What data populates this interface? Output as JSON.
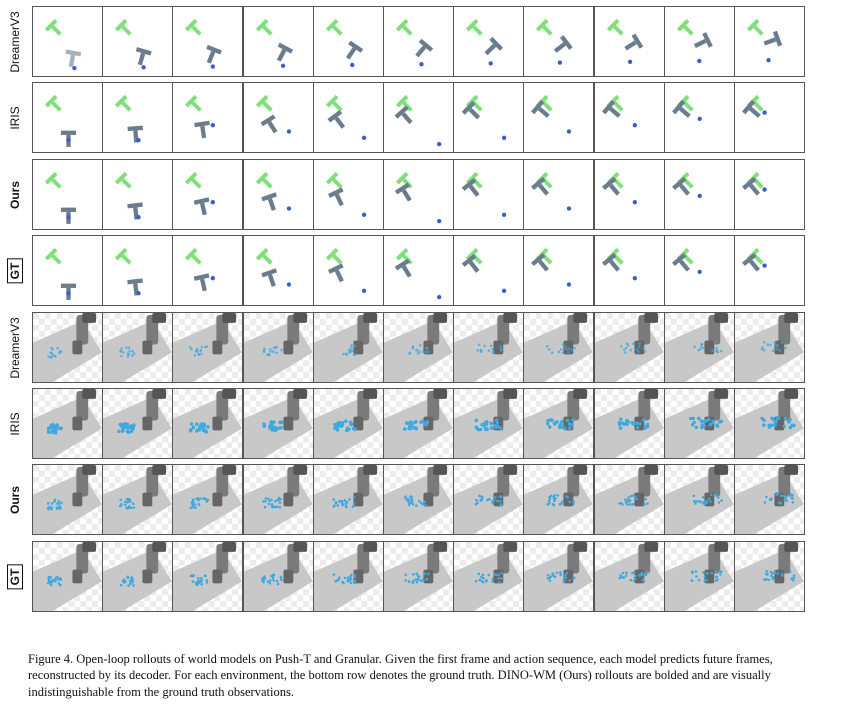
{
  "rows": [
    {
      "label": "DreamerV3",
      "style": "normal",
      "env": "pusht",
      "model": "dreamer"
    },
    {
      "label": "IRIS",
      "style": "normal",
      "env": "pusht",
      "model": "iris"
    },
    {
      "label": "Ours",
      "style": "bold",
      "env": "pusht",
      "model": "ours"
    },
    {
      "label": "GT",
      "style": "boxed",
      "env": "pusht",
      "model": "gt"
    },
    {
      "label": "DreamerV3",
      "style": "normal",
      "env": "granular",
      "model": "dreamer"
    },
    {
      "label": "IRIS",
      "style": "normal",
      "env": "granular",
      "model": "iris"
    },
    {
      "label": "Ours",
      "style": "bold",
      "env": "granular",
      "model": "ours"
    },
    {
      "label": "GT",
      "style": "boxed",
      "env": "granular",
      "model": "gt"
    }
  ],
  "frames_per_row": 11,
  "colors": {
    "target_t": "#7fe07a",
    "object_t": "#6b7d8c",
    "agent": "#3a5cd0",
    "granule": "#3fa8e0",
    "floor": "#c8c8c8",
    "robot": "#7a7a7a"
  },
  "caption": {
    "text": "Figure 4. Open-loop rollouts of world models on Push-T and Granular. Given the first frame and action sequence, each model predicts future frames, reconstructed by its decoder. For each environment, the bottom row denotes the ground truth. DINO-WM (Ours) rollouts are bolded and are visually indistinguishable from the ground truth observations."
  }
}
